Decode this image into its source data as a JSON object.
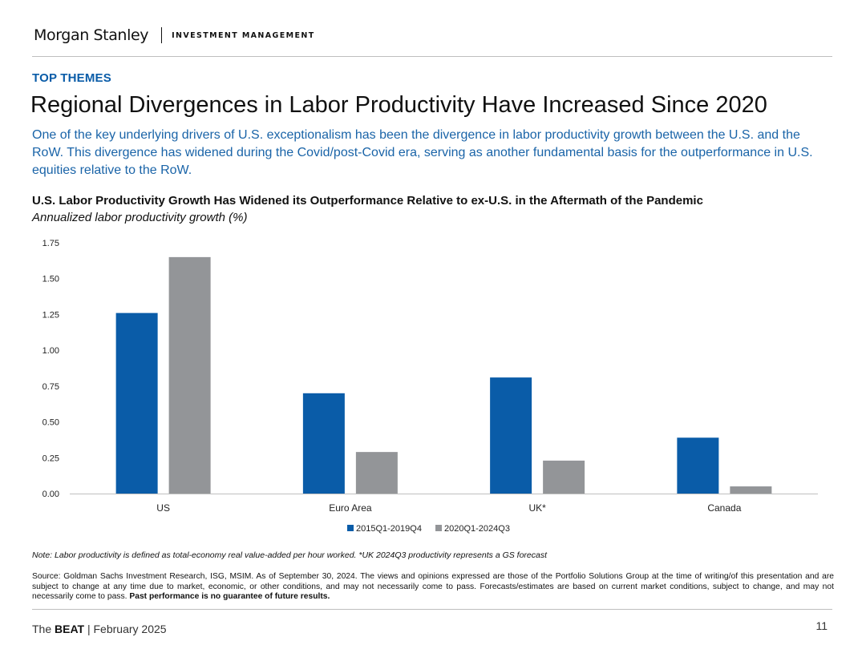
{
  "header": {
    "logo": "Morgan Stanley",
    "division": "INVESTMENT MANAGEMENT"
  },
  "eyebrow": "TOP THEMES",
  "title": "Regional Divergences in Labor Productivity Have Increased Since 2020",
  "subtitle": "One of the key underlying drivers of U.S. exceptionalism has been the divergence in labor productivity growth between the U.S. and the RoW. This divergence has widened during the Covid/post-Covid era, serving as another fundamental basis for the outperformance in U.S. equities relative to the RoW.",
  "chart_data": {
    "type": "bar",
    "title": "U.S. Labor Productivity Growth Has Widened its Outperformance Relative to ex-U.S. in the Aftermath of the Pandemic",
    "subtitle": "Annualized labor productivity growth (%)",
    "categories": [
      "US",
      "Euro Area",
      "UK*",
      "Canada"
    ],
    "series": [
      {
        "name": "2015Q1-2019Q4",
        "values": [
          1.26,
          0.7,
          0.81,
          0.39
        ],
        "color": "#0a5ca8"
      },
      {
        "name": "2020Q1-2024Q3",
        "values": [
          1.65,
          0.29,
          0.23,
          0.05
        ],
        "color": "#939598"
      }
    ],
    "ylim": [
      0,
      1.75
    ],
    "yticks": [
      "0.00",
      "0.25",
      "0.50",
      "0.75",
      "1.00",
      "1.25",
      "1.50",
      "1.75"
    ],
    "xlabel": "",
    "ylabel": "",
    "legend": "bottom-center",
    "grid": false
  },
  "note": "Note: Labor productivity is defined as total-economy real value-added per hour worked. *UK 2024Q3 productivity represents a GS forecast",
  "source": {
    "text": "Source: Goldman Sachs Investment Research, ISG, MSIM. As of September 30, 2024. The views and opinions expressed are those of the Portfolio Solutions Group at the time of writing/of this presentation and are subject to change at any time due to market, economic, or other conditions, and may not necessarily come to pass. Forecasts/estimates are based on current market conditions, subject to change, and may not necessarily come to pass.",
    "bold": "Past performance is no guarantee of future results."
  },
  "footer": {
    "prefix": "The ",
    "brand": "BEAT",
    "suffix": " | February 2025",
    "page": "11"
  }
}
